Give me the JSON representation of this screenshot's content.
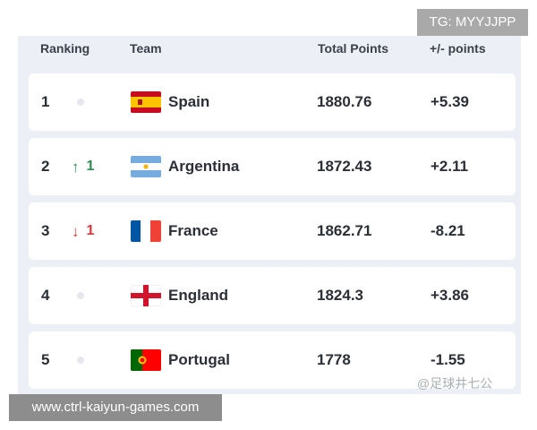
{
  "header": {
    "ranking": "Ranking",
    "team": "Team",
    "total_points": "Total Points",
    "plus_minus": "+/- points"
  },
  "rows": [
    {
      "rank": "1",
      "movement": "none",
      "move_value": "",
      "team": "Spain",
      "flag": "spain-flag",
      "points": "1880.76",
      "change": "+5.39"
    },
    {
      "rank": "2",
      "movement": "up",
      "move_value": "1",
      "team": "Argentina",
      "flag": "argentina-flag",
      "points": "1872.43",
      "change": "+2.11"
    },
    {
      "rank": "3",
      "movement": "down",
      "move_value": "1",
      "team": "France",
      "flag": "france-flag",
      "points": "1862.71",
      "change": "-8.21"
    },
    {
      "rank": "4",
      "movement": "none",
      "move_value": "",
      "team": "England",
      "flag": "england-flag",
      "points": "1824.3",
      "change": "+3.86"
    },
    {
      "rank": "5",
      "movement": "none",
      "move_value": "",
      "team": "Portugal",
      "flag": "portugal-flag",
      "points": "1778",
      "change": "-1.55"
    }
  ],
  "overlays": {
    "tg": "TG: MYYJJPP",
    "url": "www.ctrl-kaiyun-games.com",
    "watermark": "@足球井七公"
  },
  "colors": {
    "up": "#2e8a52",
    "down": "#d13a3a",
    "panel_bg": "#eceff6",
    "card_bg": "#ffffff"
  }
}
